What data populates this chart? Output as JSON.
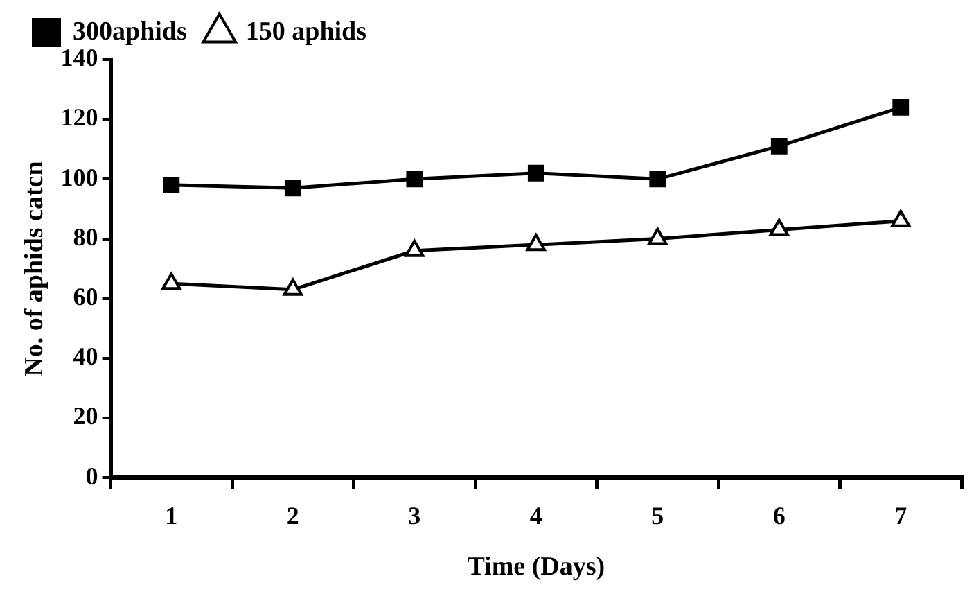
{
  "chart_data": {
    "type": "line",
    "xlabel": "Time (Days)",
    "ylabel": "No. of aphids catcn",
    "categories": [
      "1",
      "2",
      "3",
      "4",
      "5",
      "6",
      "7"
    ],
    "series": [
      {
        "name": "300aphids",
        "color": "#000000",
        "marker": "square",
        "values": [
          98,
          97,
          100,
          102,
          100,
          111,
          124
        ]
      },
      {
        "name": "150 aphids",
        "color": "#000000",
        "marker": "triangle",
        "values": [
          65,
          63,
          76,
          78,
          80,
          83,
          86
        ]
      }
    ],
    "ylim": [
      0,
      140
    ],
    "yticks": [
      0,
      20,
      40,
      60,
      80,
      100,
      120,
      140
    ],
    "grid": false,
    "legend": "top left",
    "line_style": "solid"
  }
}
